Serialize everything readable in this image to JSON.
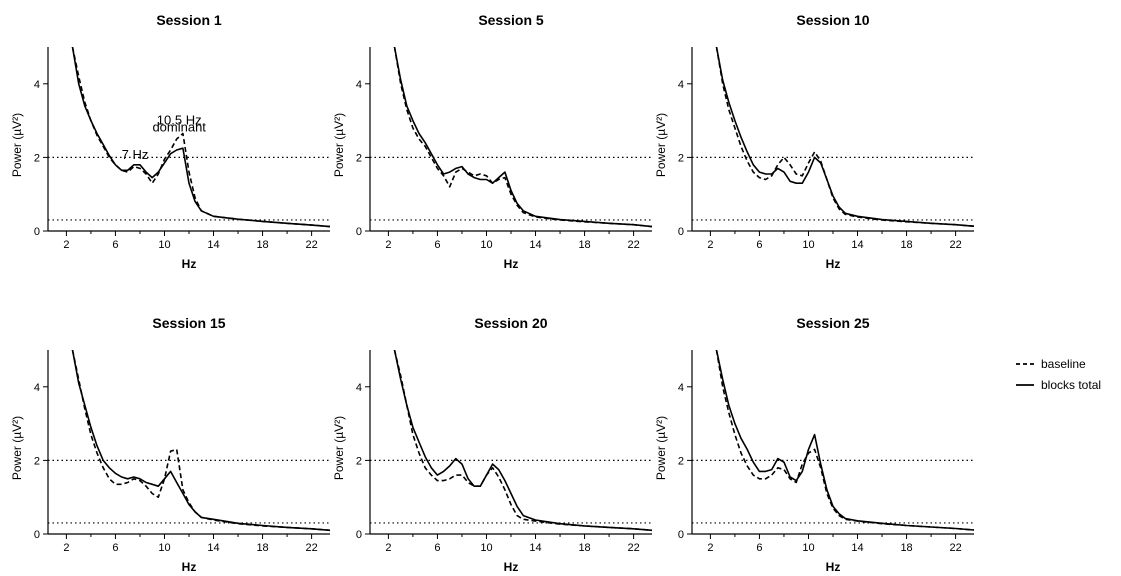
{
  "chart_data": [
    {
      "type": "line",
      "title": "Session 1",
      "xlabel": "Hz",
      "ylabel": "Power (µV²)",
      "xlim": [
        0.5,
        23.5
      ],
      "ylim": [
        0,
        5
      ],
      "xticks": [
        2,
        6,
        10,
        14,
        18,
        22
      ],
      "yticks": [
        0,
        2,
        4
      ],
      "reference_lines": [
        2.0,
        0.3
      ],
      "annotations": [
        {
          "text": "7 Hz",
          "x": 7.6,
          "y": 1.95
        },
        {
          "text": "10.5 Hz",
          "x": 11.2,
          "y": 2.9
        },
        {
          "text": "dominant",
          "x": 11.2,
          "y": 2.7
        }
      ],
      "series": [
        {
          "name": "baseline",
          "style": "dashed",
          "x": [
            2.5,
            3,
            3.5,
            4,
            4.5,
            5,
            5.5,
            6,
            6.5,
            7,
            7.5,
            8,
            8.5,
            9,
            9.5,
            10,
            10.5,
            11,
            11.5,
            12,
            12.5,
            13,
            14,
            16,
            18,
            20,
            22,
            23.5
          ],
          "y": [
            5.0,
            4.2,
            3.5,
            3.0,
            2.6,
            2.3,
            2.0,
            1.8,
            1.65,
            1.6,
            1.75,
            1.7,
            1.55,
            1.3,
            1.55,
            1.95,
            2.2,
            2.5,
            2.65,
            1.6,
            0.9,
            0.55,
            0.4,
            0.32,
            0.26,
            0.21,
            0.16,
            0.12
          ]
        },
        {
          "name": "blocks total",
          "style": "solid",
          "x": [
            2.5,
            3,
            3.5,
            4,
            4.5,
            5,
            5.5,
            6,
            6.5,
            7,
            7.5,
            8,
            8.5,
            9,
            9.5,
            10,
            10.5,
            11,
            11.5,
            12,
            12.5,
            13,
            14,
            16,
            18,
            20,
            22,
            23.5
          ],
          "y": [
            5.0,
            4.0,
            3.4,
            3.0,
            2.65,
            2.35,
            2.05,
            1.8,
            1.65,
            1.65,
            1.8,
            1.8,
            1.6,
            1.45,
            1.6,
            1.85,
            2.1,
            2.2,
            2.25,
            1.3,
            0.8,
            0.55,
            0.4,
            0.32,
            0.26,
            0.21,
            0.16,
            0.12
          ]
        }
      ]
    },
    {
      "type": "line",
      "title": "Session 5",
      "xlabel": "Hz",
      "ylabel": "Power (µV²)",
      "xlim": [
        0.5,
        23.5
      ],
      "ylim": [
        0,
        5
      ],
      "xticks": [
        2,
        6,
        10,
        14,
        18,
        22
      ],
      "yticks": [
        0,
        2,
        4
      ],
      "reference_lines": [
        2.0,
        0.3
      ],
      "series": [
        {
          "name": "baseline",
          "style": "dashed",
          "x": [
            2.5,
            3,
            3.5,
            4,
            4.5,
            5,
            5.5,
            6,
            6.5,
            7,
            7.5,
            8,
            8.5,
            9,
            9.5,
            10,
            10.5,
            11,
            11.5,
            12,
            12.5,
            13,
            14,
            16,
            18,
            20,
            22,
            23.5
          ],
          "y": [
            5.0,
            4.0,
            3.3,
            2.8,
            2.5,
            2.3,
            2.0,
            1.7,
            1.5,
            1.2,
            1.6,
            1.7,
            1.6,
            1.5,
            1.55,
            1.5,
            1.3,
            1.4,
            1.45,
            1.0,
            0.7,
            0.5,
            0.38,
            0.3,
            0.25,
            0.21,
            0.17,
            0.12
          ]
        },
        {
          "name": "blocks total",
          "style": "solid",
          "x": [
            2.5,
            3,
            3.5,
            4,
            4.5,
            5,
            5.5,
            6,
            6.5,
            7,
            7.5,
            8,
            8.5,
            9,
            9.5,
            10,
            10.5,
            11,
            11.5,
            12,
            12.5,
            13,
            14,
            16,
            18,
            20,
            22,
            23.5
          ],
          "y": [
            5.0,
            4.1,
            3.4,
            3.0,
            2.65,
            2.4,
            2.1,
            1.8,
            1.55,
            1.6,
            1.7,
            1.75,
            1.55,
            1.45,
            1.4,
            1.4,
            1.3,
            1.45,
            1.6,
            1.1,
            0.75,
            0.55,
            0.4,
            0.31,
            0.26,
            0.21,
            0.17,
            0.12
          ]
        }
      ]
    },
    {
      "type": "line",
      "title": "Session 10",
      "xlabel": "Hz",
      "ylabel": "Power (µV²)",
      "xlim": [
        0.5,
        23.5
      ],
      "ylim": [
        0,
        5
      ],
      "xticks": [
        2,
        6,
        10,
        14,
        18,
        22
      ],
      "yticks": [
        0,
        2,
        4
      ],
      "reference_lines": [
        2.0,
        0.3
      ],
      "series": [
        {
          "name": "baseline",
          "style": "dashed",
          "x": [
            2.5,
            3,
            3.5,
            4,
            4.5,
            5,
            5.5,
            6,
            6.5,
            7,
            7.5,
            8,
            8.5,
            9,
            9.5,
            10,
            10.5,
            11,
            11.5,
            12,
            12.5,
            13,
            14,
            16,
            18,
            20,
            22,
            23.5
          ],
          "y": [
            5.0,
            4.0,
            3.3,
            2.8,
            2.3,
            1.9,
            1.6,
            1.45,
            1.4,
            1.5,
            1.8,
            2.0,
            1.8,
            1.55,
            1.5,
            1.85,
            2.15,
            1.9,
            1.4,
            0.9,
            0.6,
            0.45,
            0.38,
            0.3,
            0.25,
            0.21,
            0.17,
            0.13
          ]
        },
        {
          "name": "blocks total",
          "style": "solid",
          "x": [
            2.5,
            3,
            3.5,
            4,
            4.5,
            5,
            5.5,
            6,
            6.5,
            7,
            7.5,
            8,
            8.5,
            9,
            9.5,
            10,
            10.5,
            11,
            11.5,
            12,
            12.5,
            13,
            14,
            16,
            18,
            20,
            22,
            23.5
          ],
          "y": [
            5.0,
            4.1,
            3.5,
            3.0,
            2.55,
            2.15,
            1.8,
            1.6,
            1.55,
            1.55,
            1.7,
            1.6,
            1.35,
            1.3,
            1.3,
            1.6,
            2.0,
            1.85,
            1.4,
            0.95,
            0.65,
            0.48,
            0.4,
            0.31,
            0.26,
            0.21,
            0.17,
            0.13
          ]
        }
      ]
    },
    {
      "type": "line",
      "title": "Session 15",
      "xlabel": "Hz",
      "ylabel": "Power (µV²)",
      "xlim": [
        0.5,
        23.5
      ],
      "ylim": [
        0,
        5
      ],
      "xticks": [
        2,
        6,
        10,
        14,
        18,
        22
      ],
      "yticks": [
        0,
        2,
        4
      ],
      "reference_lines": [
        2.0,
        0.3
      ],
      "series": [
        {
          "name": "baseline",
          "style": "dashed",
          "x": [
            2.5,
            3,
            3.5,
            4,
            4.5,
            5,
            5.5,
            6,
            6.5,
            7,
            7.5,
            8,
            8.5,
            9,
            9.5,
            10,
            10.5,
            11,
            11.5,
            12,
            12.5,
            13,
            14,
            16,
            18,
            20,
            22,
            23.5
          ],
          "y": [
            5.0,
            4.2,
            3.4,
            2.7,
            2.2,
            1.8,
            1.5,
            1.35,
            1.35,
            1.4,
            1.5,
            1.45,
            1.3,
            1.1,
            1.0,
            1.5,
            2.25,
            2.3,
            1.2,
            0.85,
            0.6,
            0.45,
            0.38,
            0.28,
            0.22,
            0.18,
            0.14,
            0.1
          ]
        },
        {
          "name": "blocks total",
          "style": "solid",
          "x": [
            2.5,
            3,
            3.5,
            4,
            4.5,
            5,
            5.5,
            6,
            6.5,
            7,
            7.5,
            8,
            8.5,
            9,
            9.5,
            10,
            10.5,
            11,
            11.5,
            12,
            12.5,
            13,
            14,
            16,
            18,
            20,
            22,
            23.5
          ],
          "y": [
            5.0,
            4.1,
            3.5,
            2.9,
            2.4,
            2.0,
            1.8,
            1.65,
            1.55,
            1.5,
            1.55,
            1.5,
            1.4,
            1.35,
            1.3,
            1.5,
            1.7,
            1.4,
            1.1,
            0.8,
            0.6,
            0.45,
            0.4,
            0.29,
            0.23,
            0.18,
            0.14,
            0.1
          ]
        }
      ]
    },
    {
      "type": "line",
      "title": "Session 20",
      "xlabel": "Hz",
      "ylabel": "Power (µV²)",
      "xlim": [
        0.5,
        23.5
      ],
      "ylim": [
        0,
        5
      ],
      "xticks": [
        2,
        6,
        10,
        14,
        18,
        22
      ],
      "yticks": [
        0,
        2,
        4
      ],
      "reference_lines": [
        2.0,
        0.3
      ],
      "series": [
        {
          "name": "baseline",
          "style": "dashed",
          "x": [
            2.5,
            3,
            3.5,
            4,
            4.5,
            5,
            5.5,
            6,
            6.5,
            7,
            7.5,
            8,
            8.5,
            9,
            9.5,
            10,
            10.5,
            11,
            11.5,
            12,
            12.5,
            13,
            14,
            16,
            18,
            20,
            22,
            23.5
          ],
          "y": [
            5.0,
            4.3,
            3.5,
            2.7,
            2.2,
            1.8,
            1.6,
            1.45,
            1.45,
            1.5,
            1.6,
            1.6,
            1.4,
            1.3,
            1.3,
            1.6,
            1.8,
            1.55,
            1.2,
            0.8,
            0.5,
            0.4,
            0.35,
            0.27,
            0.22,
            0.18,
            0.14,
            0.1
          ]
        },
        {
          "name": "blocks total",
          "style": "solid",
          "x": [
            2.5,
            3,
            3.5,
            4,
            4.5,
            5,
            5.5,
            6,
            6.5,
            7,
            7.5,
            8,
            8.5,
            9,
            9.5,
            10,
            10.5,
            11,
            11.5,
            12,
            12.5,
            13,
            14,
            16,
            18,
            20,
            22,
            23.5
          ],
          "y": [
            5.0,
            4.2,
            3.5,
            2.9,
            2.5,
            2.1,
            1.8,
            1.6,
            1.7,
            1.85,
            2.05,
            1.9,
            1.5,
            1.3,
            1.3,
            1.6,
            1.9,
            1.75,
            1.45,
            1.1,
            0.75,
            0.5,
            0.38,
            0.28,
            0.22,
            0.18,
            0.14,
            0.1
          ]
        }
      ]
    },
    {
      "type": "line",
      "title": "Session 25",
      "xlabel": "Hz",
      "ylabel": "Power (µV²)",
      "xlim": [
        0.5,
        23.5
      ],
      "ylim": [
        0,
        5
      ],
      "xticks": [
        2,
        6,
        10,
        14,
        18,
        22
      ],
      "yticks": [
        0,
        2,
        4
      ],
      "reference_lines": [
        2.0,
        0.3
      ],
      "series": [
        {
          "name": "baseline",
          "style": "dashed",
          "x": [
            2.5,
            3,
            3.5,
            4,
            4.5,
            5,
            5.5,
            6,
            6.5,
            7,
            7.5,
            8,
            8.5,
            9,
            9.5,
            10,
            10.5,
            11,
            11.5,
            12,
            12.5,
            13,
            14,
            16,
            18,
            20,
            22,
            23.5
          ],
          "y": [
            5.0,
            4.0,
            3.3,
            2.7,
            2.2,
            1.85,
            1.6,
            1.5,
            1.5,
            1.6,
            1.8,
            1.75,
            1.5,
            1.4,
            1.9,
            2.2,
            2.3,
            1.8,
            1.1,
            0.7,
            0.5,
            0.4,
            0.35,
            0.28,
            0.23,
            0.19,
            0.15,
            0.11
          ]
        },
        {
          "name": "blocks total",
          "style": "solid",
          "x": [
            2.5,
            3,
            3.5,
            4,
            4.5,
            5,
            5.5,
            6,
            6.5,
            7,
            7.5,
            8,
            8.5,
            9,
            9.5,
            10,
            10.5,
            11,
            11.5,
            12,
            12.5,
            13,
            14,
            16,
            18,
            20,
            22,
            23.5
          ],
          "y": [
            5.0,
            4.2,
            3.5,
            3.0,
            2.6,
            2.3,
            1.95,
            1.7,
            1.7,
            1.75,
            2.05,
            1.95,
            1.55,
            1.45,
            1.7,
            2.3,
            2.7,
            1.9,
            1.2,
            0.75,
            0.55,
            0.42,
            0.36,
            0.29,
            0.23,
            0.19,
            0.15,
            0.11
          ]
        }
      ]
    }
  ],
  "legend": {
    "placement": "right",
    "entries": [
      {
        "label": "baseline",
        "style": "dashed"
      },
      {
        "label": "blocks total",
        "style": "solid"
      }
    ]
  }
}
